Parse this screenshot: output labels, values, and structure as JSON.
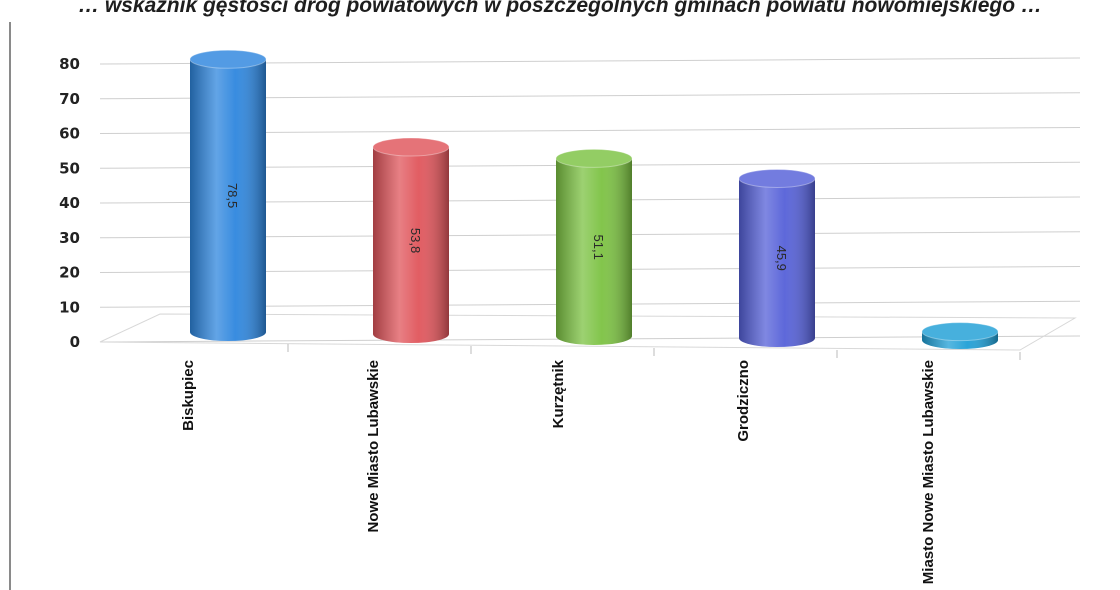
{
  "title": "… wskaźnik gęstości dróg powiatowych w poszczególnych gminach powiatu nowomiejskiego …",
  "chart_data": {
    "type": "bar",
    "title": "",
    "xlabel": "",
    "ylabel": "",
    "ylim": [
      0,
      80
    ],
    "yticks": [
      "0",
      "10",
      "20",
      "30",
      "40",
      "50",
      "60",
      "70",
      "80"
    ],
    "grid": true,
    "legend": "none",
    "categories": [
      "Biskupiec",
      "Nowe Miasto Lubawskie",
      "Kurzętnik",
      "Grodziczno",
      "Miasto Nowe Miasto Lubawskie"
    ],
    "values": [
      78.5,
      53.8,
      51.1,
      45.9,
      2.4
    ],
    "data_labels": [
      "78,5",
      "53,8",
      "51,1",
      "45,9",
      ""
    ],
    "colors": [
      "#2e86de",
      "#e0555b",
      "#7cc242",
      "#5560d8",
      "#1f9fd6"
    ]
  }
}
